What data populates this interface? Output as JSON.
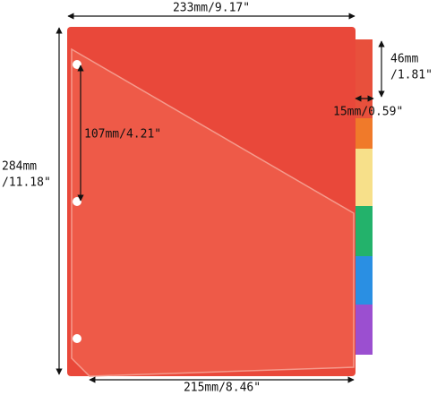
{
  "dimensions": {
    "width": "233mm/9.17\"",
    "tab_height": [
      "46mm",
      "/1.81\""
    ],
    "tab_width": "15mm/0.59\"",
    "hole_spacing": "107mm/4.21\"",
    "height": [
      "284mm",
      "/11.18\""
    ],
    "pocket_width": "215mm/8.46\""
  }
}
